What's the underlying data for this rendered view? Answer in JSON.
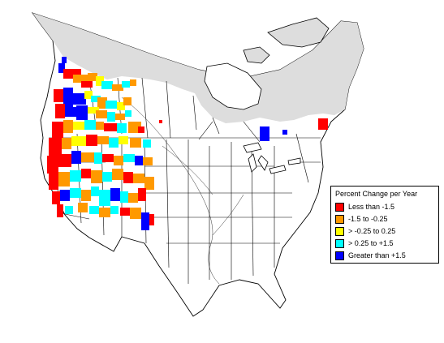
{
  "legend": {
    "title": "Percent Change per Year",
    "items": [
      {
        "label": "Less than -1.5",
        "color": "#ff0000"
      },
      {
        "label": "-1.5 to -0.25",
        "color": "#ff9900"
      },
      {
        "label": "> -0.25 to 0.25",
        "color": "#ffff00"
      },
      {
        "label": "> 0.25 to +1.5",
        "color": "#00ffff"
      },
      {
        "label": "Greater than +1.5",
        "color": "#0000ff"
      }
    ]
  },
  "colors": {
    "no_data_region": "#dddddd",
    "boundary": "#000000",
    "background": "#ffffff"
  }
}
